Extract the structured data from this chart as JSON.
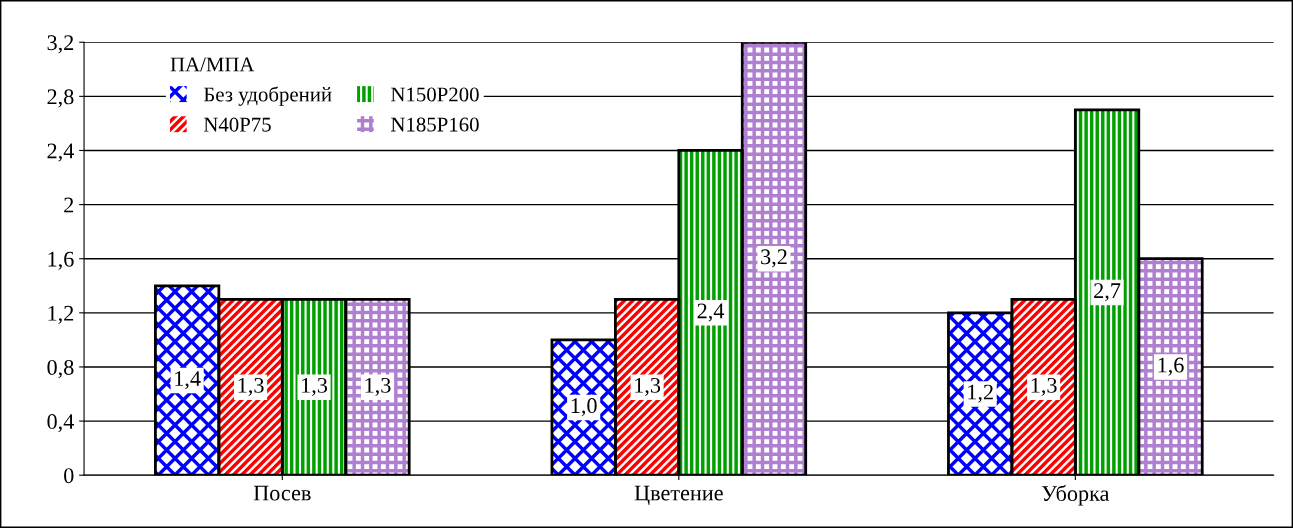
{
  "chart_data": {
    "type": "bar",
    "categories": [
      "Посев",
      "Цветение",
      "Уборка"
    ],
    "legend_title": "ПА/МПА",
    "series": [
      {
        "name": "Без удобрений",
        "color": "#0000ff",
        "values": [
          1.4,
          1.0,
          1.2
        ],
        "value_labels": [
          "1,4",
          "1,0",
          "1,2"
        ]
      },
      {
        "name": "N40P75",
        "color": "#ff0000",
        "values": [
          1.3,
          1.3,
          1.3
        ],
        "value_labels": [
          "1,3",
          "1,3",
          "1,3"
        ]
      },
      {
        "name": "N150P200",
        "color": "#00a000",
        "values": [
          1.3,
          2.4,
          2.7
        ],
        "value_labels": [
          "1,3",
          "2,4",
          "2,7"
        ]
      },
      {
        "name": "N185P160",
        "color": "#b080d0",
        "values": [
          1.3,
          3.2,
          1.6
        ],
        "value_labels": [
          "1,3",
          "3,2",
          "1,6"
        ]
      }
    ],
    "ylim": [
      0,
      3.2
    ],
    "yticks": [
      0,
      {
        "value": 0.4,
        "label": "0,4"
      },
      {
        "value": 0.8,
        "label": "0,8"
      },
      {
        "value": 1.2,
        "label": "1,2"
      },
      {
        "value": 1.6,
        "label": "1,6"
      },
      2,
      {
        "value": 2.4,
        "label": "2,4"
      },
      {
        "value": 2.8,
        "label": "2,8"
      },
      {
        "value": 3.2,
        "label": "3,2"
      }
    ],
    "grid": "y",
    "legend": "top left"
  }
}
